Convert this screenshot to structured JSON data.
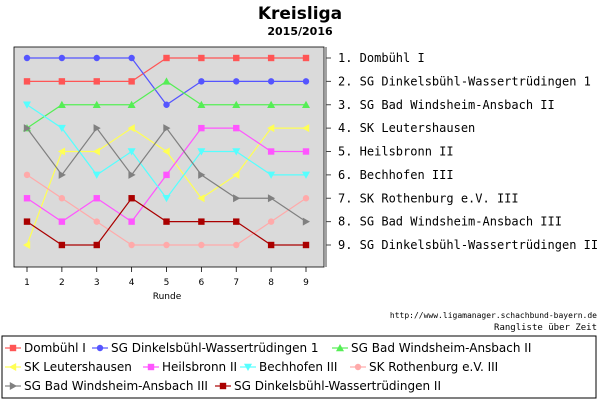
{
  "chart_data": {
    "type": "line",
    "title": "Kreisliga",
    "subtitle": "2015/2016",
    "xlabel": "Runde",
    "ylabel": "",
    "x": [
      1,
      2,
      3,
      4,
      5,
      6,
      7,
      8,
      9
    ],
    "ylim": [
      1,
      9
    ],
    "y_inverted": true,
    "grid": false,
    "rank_labels": [
      "1. Dombühl I",
      "2. SG Dinkelsbühl-Wassertrüdingen 1",
      "3. SG Bad Windsheim-Ansbach II",
      "4. SK Leutershausen",
      "5. Heilsbronn II",
      "6. Bechhofen III",
      "7. SK Rothenburg e.V. III",
      "8. SG Bad Windsheim-Ansbach III",
      "9. SG Dinkelsbühl-Wassertrüdingen II"
    ],
    "credit_url": "http://www.ligamanager.schachbund-bayern.de",
    "credit_caption": "Rangliste über Zeit",
    "legend_position": "bottom",
    "series": [
      {
        "name": "Dombühl I",
        "color": "#ff5555",
        "marker": "square",
        "values": [
          2,
          2,
          2,
          2,
          1,
          1,
          1,
          1,
          1
        ]
      },
      {
        "name": "SG Dinkelsbühl-Wassertrüdingen 1",
        "color": "#5555ff",
        "marker": "circle",
        "values": [
          1,
          1,
          1,
          1,
          3,
          2,
          2,
          2,
          2
        ]
      },
      {
        "name": "SG Bad Windsheim-Ansbach II",
        "color": "#55ee55",
        "marker": "triangle-up",
        "values": [
          4,
          3,
          3,
          3,
          2,
          3,
          3,
          3,
          3
        ]
      },
      {
        "name": "SK Leutershausen",
        "color": "#ffff55",
        "marker": "triangle-left",
        "values": [
          9,
          5,
          5,
          4,
          5,
          7,
          6,
          4,
          4
        ]
      },
      {
        "name": "Heilsbronn II",
        "color": "#ff55ff",
        "marker": "square",
        "values": [
          7,
          8,
          7,
          8,
          6,
          4,
          4,
          5,
          5
        ]
      },
      {
        "name": "Bechhofen III",
        "color": "#55ffff",
        "marker": "triangle-down",
        "values": [
          3,
          4,
          6,
          5,
          7,
          5,
          5,
          6,
          6
        ]
      },
      {
        "name": "SK Rothenburg e.V. III",
        "color": "#ffaaaa",
        "marker": "circle",
        "values": [
          6,
          7,
          8,
          9,
          9,
          9,
          9,
          8,
          7
        ]
      },
      {
        "name": "SG Bad Windsheim-Ansbach III",
        "color": "#808080",
        "marker": "triangle-right",
        "values": [
          4,
          6,
          4,
          6,
          4,
          6,
          7,
          7,
          8
        ]
      },
      {
        "name": "SG Dinkelsbühl-Wassertrüdingen II",
        "color": "#aa0000",
        "marker": "square",
        "values": [
          8,
          9,
          9,
          7,
          8,
          8,
          8,
          9,
          9
        ]
      }
    ]
  }
}
